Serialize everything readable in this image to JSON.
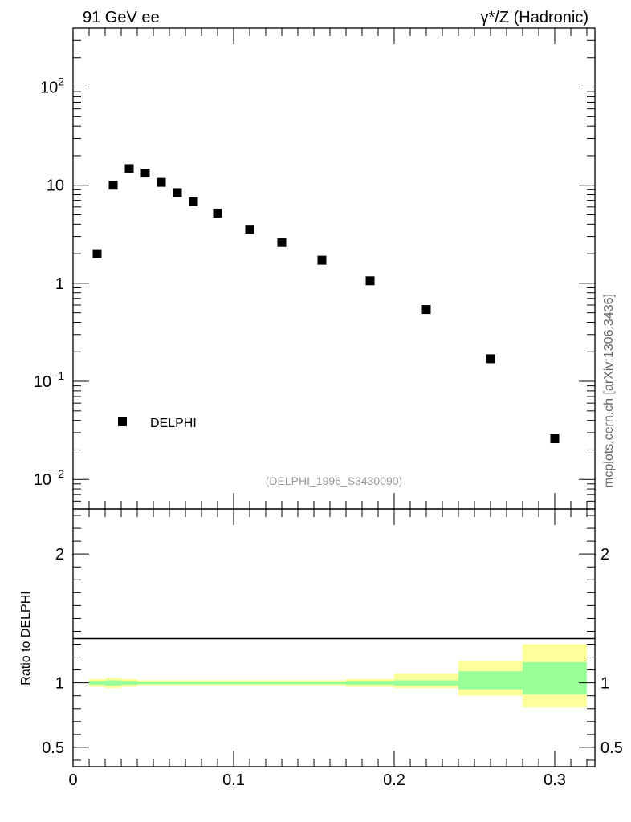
{
  "chart_data": {
    "type": "scatter",
    "top_left_label": "91 GeV ee",
    "top_right_label": "γ*/Z (Hadronic)",
    "side_label": "mcplots.cern.ch [arXiv:1306.3436]",
    "analysis_label": "(DELPHI_1996_S3430090)",
    "legend": "DELPHI",
    "main_panel": {
      "yscale": "log",
      "ylim": [
        0.005,
        400
      ],
      "y_tick_labels": [
        "10^-2",
        "10^-1",
        "1",
        "10",
        "10^2"
      ],
      "series": [
        {
          "name": "DELPHI",
          "x": [
            0.015,
            0.025,
            0.035,
            0.045,
            0.055,
            0.065,
            0.075,
            0.09,
            0.11,
            0.13,
            0.155,
            0.185,
            0.22,
            0.26,
            0.3
          ],
          "y": [
            2.0,
            10.0,
            14.8,
            13.3,
            10.7,
            8.4,
            6.8,
            5.2,
            3.55,
            2.6,
            1.72,
            1.06,
            0.54,
            0.17,
            0.026
          ]
        }
      ]
    },
    "ratio_panel": {
      "ylabel": "Ratio to DELPHI",
      "ylim": [
        0.35,
        2.35
      ],
      "y_ticks": [
        0.5,
        1,
        2
      ],
      "y_tick_labels": [
        "0.5",
        "1",
        "2"
      ],
      "bands": [
        {
          "x0": 0.01,
          "x1": 0.02,
          "inner": [
            0.985,
            1.015
          ],
          "outer": [
            0.97,
            1.03
          ]
        },
        {
          "x0": 0.02,
          "x1": 0.03,
          "inner": [
            0.98,
            1.02
          ],
          "outer": [
            0.96,
            1.04
          ]
        },
        {
          "x0": 0.03,
          "x1": 0.04,
          "inner": [
            0.985,
            1.015
          ],
          "outer": [
            0.97,
            1.03
          ]
        },
        {
          "x0": 0.04,
          "x1": 0.05,
          "inner": [
            0.99,
            1.01
          ],
          "outer": [
            0.98,
            1.02
          ]
        },
        {
          "x0": 0.05,
          "x1": 0.06,
          "inner": [
            0.99,
            1.01
          ],
          "outer": [
            0.98,
            1.02
          ]
        },
        {
          "x0": 0.06,
          "x1": 0.07,
          "inner": [
            0.99,
            1.01
          ],
          "outer": [
            0.98,
            1.02
          ]
        },
        {
          "x0": 0.07,
          "x1": 0.08,
          "inner": [
            0.99,
            1.01
          ],
          "outer": [
            0.98,
            1.02
          ]
        },
        {
          "x0": 0.08,
          "x1": 0.1,
          "inner": [
            0.99,
            1.01
          ],
          "outer": [
            0.98,
            1.02
          ]
        },
        {
          "x0": 0.1,
          "x1": 0.12,
          "inner": [
            0.99,
            1.01
          ],
          "outer": [
            0.98,
            1.02
          ]
        },
        {
          "x0": 0.12,
          "x1": 0.14,
          "inner": [
            0.99,
            1.01
          ],
          "outer": [
            0.98,
            1.02
          ]
        },
        {
          "x0": 0.14,
          "x1": 0.17,
          "inner": [
            0.99,
            1.01
          ],
          "outer": [
            0.98,
            1.02
          ]
        },
        {
          "x0": 0.17,
          "x1": 0.2,
          "inner": [
            0.985,
            1.015
          ],
          "outer": [
            0.97,
            1.03
          ]
        },
        {
          "x0": 0.2,
          "x1": 0.24,
          "inner": [
            0.98,
            1.02
          ],
          "outer": [
            0.96,
            1.07
          ]
        },
        {
          "x0": 0.24,
          "x1": 0.28,
          "inner": [
            0.95,
            1.09
          ],
          "outer": [
            0.9,
            1.17
          ]
        },
        {
          "x0": 0.28,
          "x1": 0.32,
          "inner": [
            0.91,
            1.16
          ],
          "outer": [
            0.81,
            1.3
          ]
        }
      ]
    },
    "xlim": [
      0,
      0.325
    ],
    "x_ticks": [
      0,
      0.1,
      0.2,
      0.3
    ],
    "x_tick_labels": [
      "0",
      "0.1",
      "0.2",
      "0.3"
    ]
  },
  "colors": {
    "marker": "#000000",
    "band_inner": "#99ff99",
    "band_outer": "#ffff99"
  }
}
